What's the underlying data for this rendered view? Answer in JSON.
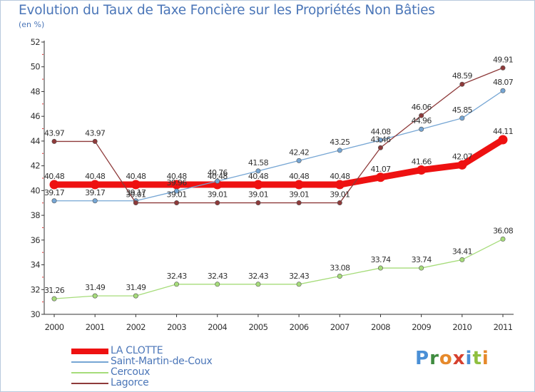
{
  "header": {
    "title": "Evolution du Taux de Taxe Foncière sur les Propriétés Non Bâties",
    "unit": "(en %)"
  },
  "brand": {
    "logo_letters": [
      "P",
      "r",
      "o",
      "x",
      "i",
      "t",
      "i"
    ],
    "logo_colors": [
      "#4a8fd6",
      "#3f8b3f",
      "#e6892b",
      "#d6402e",
      "#4a8fd6",
      "#8fbf3f",
      "#e6892b"
    ]
  },
  "chart_data": {
    "type": "line",
    "title": "Evolution du Taux de Taxe Foncière sur les Propriétés Non Bâties",
    "ylabel": "(en %)",
    "xlabel": "",
    "x": [
      "2000",
      "2001",
      "2002",
      "2003",
      "2004",
      "2005",
      "2006",
      "2007",
      "2008",
      "2009",
      "2010",
      "2011"
    ],
    "ylim": [
      30,
      52
    ],
    "yticks": [
      "30",
      "32",
      "34",
      "36",
      "38",
      "40",
      "42",
      "44",
      "46",
      "48",
      "50",
      "52"
    ],
    "grid": false,
    "legend_position": "bottom-left",
    "series": [
      {
        "name": "LA CLOTTE",
        "color": "#ee1111",
        "width": 9,
        "values": [
          40.48,
          40.48,
          40.48,
          40.48,
          40.48,
          40.48,
          40.48,
          40.48,
          41.07,
          41.66,
          42.07,
          44.11
        ],
        "labels": [
          "40.48",
          "40.48",
          "40.48",
          "40.48",
          "40.48",
          "40.48",
          "40.48",
          "40.48",
          "41.07",
          "41.66",
          "42.07",
          "44.11"
        ]
      },
      {
        "name": "Saint-Martin-de-Coux",
        "color": "#76a6d4",
        "width": 1.3,
        "values": [
          39.17,
          39.17,
          39.17,
          39.96,
          40.76,
          41.58,
          42.42,
          43.25,
          44.08,
          44.96,
          45.85,
          48.07
        ],
        "labels": [
          "39.17",
          "39.17",
          "39.17",
          "39.96",
          "40.76",
          "41.58",
          "42.42",
          "43.25",
          "44.08",
          "44.96",
          "45.85",
          "48.07"
        ]
      },
      {
        "name": "Cercoux",
        "color": "#a6dc7a",
        "width": 1.3,
        "values": [
          31.26,
          31.49,
          31.49,
          32.43,
          32.43,
          32.43,
          32.43,
          33.08,
          33.74,
          33.74,
          34.41,
          36.08
        ],
        "labels": [
          "31.26",
          "31.49",
          "31.49",
          "32.43",
          "32.43",
          "32.43",
          "32.43",
          "33.08",
          "33.74",
          "33.74",
          "34.41",
          "36.08"
        ]
      },
      {
        "name": "Lagorce",
        "color": "#8e3a3a",
        "width": 1.3,
        "values": [
          43.97,
          43.97,
          39.01,
          39.01,
          39.01,
          39.01,
          39.01,
          39.01,
          43.46,
          46.06,
          48.59,
          49.91
        ],
        "labels": [
          "43.97",
          "43.97",
          "39.01",
          "39.01",
          "39.01",
          "39.01",
          "39.01",
          "39.01",
          "43.46",
          "46.06",
          "48.59",
          "49.91"
        ]
      }
    ]
  }
}
